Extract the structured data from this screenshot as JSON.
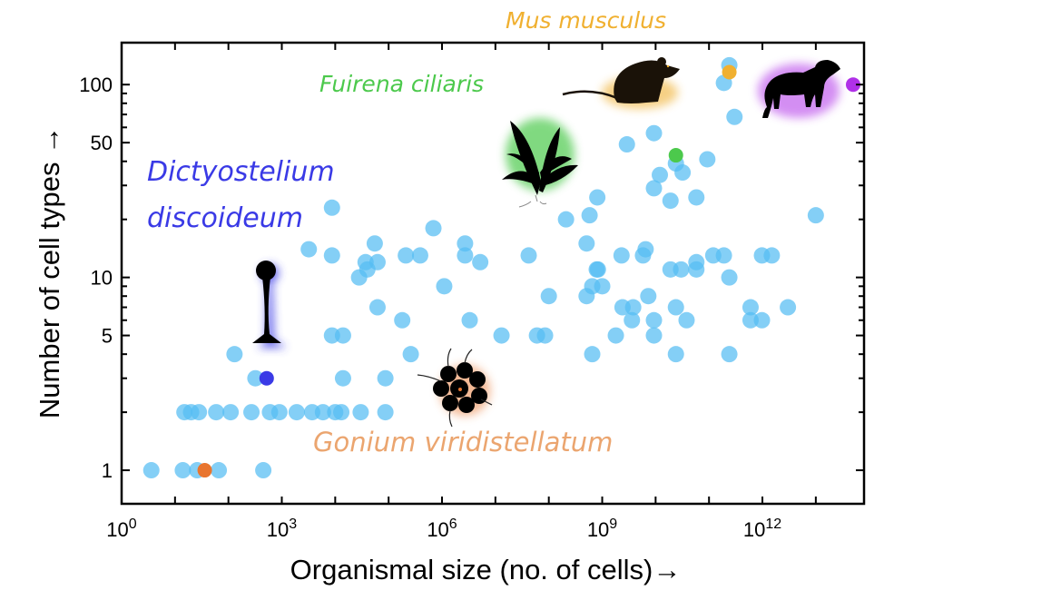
{
  "chart_data": {
    "type": "scatter",
    "xlabel": "Organismal size (no. of cells)→",
    "ylabel": "Number of cell types →",
    "x_scale": "log",
    "y_scale": "log",
    "xlim": [
      1,
      80000000000000.0
    ],
    "ylim": [
      0.67,
      165
    ],
    "x_ticks": [
      {
        "value": 1,
        "base": "10",
        "exp": "0"
      },
      {
        "value": 1000.0,
        "base": "10",
        "exp": "3"
      },
      {
        "value": 1000000.0,
        "base": "10",
        "exp": "6"
      },
      {
        "value": 1000000000.0,
        "base": "10",
        "exp": "9"
      },
      {
        "value": 1000000000000.0,
        "base": "10",
        "exp": "12"
      }
    ],
    "y_ticks": [
      {
        "value": 1,
        "label": "1"
      },
      {
        "value": 5,
        "label": "5"
      },
      {
        "value": 10,
        "label": "10"
      },
      {
        "value": 50,
        "label": "50"
      },
      {
        "value": 100,
        "label": "100"
      }
    ],
    "grid": false,
    "colors": {
      "points": "#55bdf2",
      "dictyostelium": "#3a3ae6",
      "gonium": "#e8752f",
      "fuirena": "#4cc94c",
      "mus": "#f0b030",
      "dog": "#b030e8"
    },
    "points": [
      [
        3.6,
        1
      ],
      [
        14,
        1
      ],
      [
        26,
        1
      ],
      [
        66,
        1
      ],
      [
        450,
        1
      ],
      [
        15,
        2
      ],
      [
        20,
        2
      ],
      [
        28,
        2
      ],
      [
        59,
        2
      ],
      [
        110,
        2
      ],
      [
        270,
        2
      ],
      [
        600,
        2
      ],
      [
        900,
        2
      ],
      [
        1900,
        2
      ],
      [
        3700,
        2
      ],
      [
        5900,
        2
      ],
      [
        10000,
        2
      ],
      [
        13000,
        2
      ],
      [
        30000,
        2
      ],
      [
        87000,
        2
      ],
      [
        320,
        3
      ],
      [
        14000,
        3
      ],
      [
        87000,
        3
      ],
      [
        130,
        4
      ],
      [
        260000,
        4
      ],
      [
        13000000,
        5
      ],
      [
        60000000,
        5
      ],
      [
        85000000,
        5
      ],
      [
        8700,
        5
      ],
      [
        14000,
        5
      ],
      [
        180000,
        6
      ],
      [
        3300000,
        6
      ],
      [
        62000,
        7
      ],
      [
        28000,
        10
      ],
      [
        40000,
        11
      ],
      [
        37000,
        12
      ],
      [
        62000,
        12
      ],
      [
        3200,
        14
      ],
      [
        8700,
        13
      ],
      [
        55000,
        15
      ],
      [
        210000,
        13
      ],
      [
        390000,
        13
      ],
      [
        690000,
        18
      ],
      [
        2700000,
        15
      ],
      [
        2700000,
        13
      ],
      [
        5200000,
        12
      ],
      [
        1100000,
        9
      ],
      [
        8700,
        23
      ],
      [
        42000000,
        13
      ],
      [
        100000000,
        8
      ],
      [
        210000000,
        20
      ],
      [
        580000000,
        21
      ],
      [
        810000000,
        26
      ],
      [
        510000000,
        15
      ],
      [
        790000000,
        11
      ],
      [
        830000000,
        11
      ],
      [
        650000000,
        9
      ],
      [
        1000000000,
        9
      ],
      [
        510000000,
        8
      ],
      [
        650000000,
        4
      ],
      [
        240000000000,
        126
      ],
      [
        190000000000,
        102
      ],
      [
        300000000000,
        68
      ],
      [
        9300000000,
        56
      ],
      [
        2900000000,
        49
      ],
      [
        24000000000,
        39
      ],
      [
        32000000000,
        35
      ],
      [
        12000000000,
        34
      ],
      [
        93000000000,
        41
      ],
      [
        9300000000,
        29
      ],
      [
        19000000000,
        25
      ],
      [
        58000000000,
        26
      ],
      [
        10000000000000,
        21
      ],
      [
        2300000000,
        13
      ],
      [
        5800000000,
        13
      ],
      [
        6500000000,
        14
      ],
      [
        19000000000,
        11
      ],
      [
        30000000000,
        11
      ],
      [
        58000000000,
        12
      ],
      [
        58000000000,
        11
      ],
      [
        120000000000,
        13
      ],
      [
        190000000000,
        13
      ],
      [
        980000000000,
        13
      ],
      [
        1500000000000,
        13
      ],
      [
        240000000000,
        10
      ],
      [
        7300000000,
        8
      ],
      [
        2400000000,
        7
      ],
      [
        3800000000,
        7
      ],
      [
        3600000000,
        6
      ],
      [
        9300000000,
        6
      ],
      [
        24000000000,
        7
      ],
      [
        38000000000,
        6
      ],
      [
        600000000000,
        7
      ],
      [
        600000000000,
        6
      ],
      [
        980000000000,
        6
      ],
      [
        3000000000000,
        7
      ],
      [
        1800000000,
        5
      ],
      [
        9300000000,
        5
      ],
      [
        24000000000,
        4
      ],
      [
        240000000000,
        4
      ]
    ],
    "highlighted": [
      {
        "name": "Dictyostelium discoideum",
        "label_line1": "Dictyostelium",
        "label_line2": "discoideum",
        "x": 520,
        "y": 3,
        "color": "#3a3ae6"
      },
      {
        "name": "Gonium viridistellatum",
        "label": "Gonium viridistellatum",
        "x": 36,
        "y": 1,
        "color": "#e8752f"
      },
      {
        "name": "Fuirena ciliaris",
        "label": "Fuirena ciliaris",
        "x": 24000000000,
        "y": 43,
        "color": "#4cc94c"
      },
      {
        "name": "Mus musculus",
        "label": "Mus musculus",
        "x": 240000000000,
        "y": 116,
        "color": "#f0b030"
      },
      {
        "name": "dog",
        "x": 50000000000000,
        "y": 100,
        "color": "#b030e8"
      }
    ]
  }
}
